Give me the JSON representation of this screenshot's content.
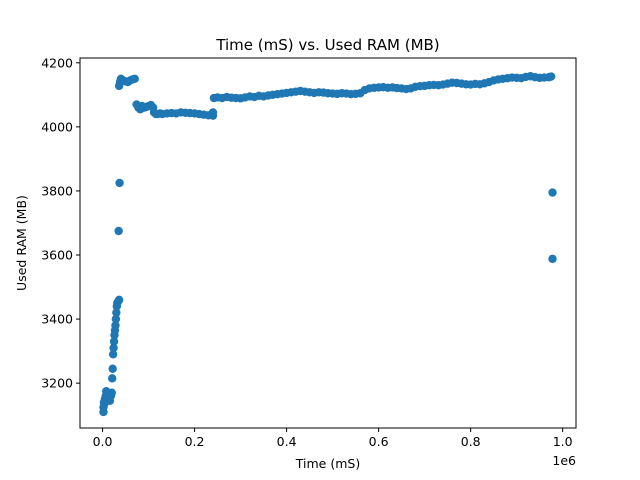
{
  "chart_data": {
    "type": "scatter",
    "title": "Time (mS) vs. Used RAM (MB)",
    "xlabel": "Time (mS)",
    "ylabel": "Used RAM (MB)",
    "x_offset_label": "1e6",
    "xlim": [
      -0.049,
      1.029
    ],
    "ylim": [
      3060,
      4215
    ],
    "x_ticks": [
      0.0,
      0.2,
      0.4,
      0.6,
      0.8,
      1.0
    ],
    "x_tick_labels": [
      "0.0",
      "0.2",
      "0.4",
      "0.6",
      "0.8",
      "1.0"
    ],
    "y_ticks": [
      3200,
      3400,
      3600,
      3800,
      4000,
      4200
    ],
    "y_tick_labels": [
      "3200",
      "3400",
      "3600",
      "3800",
      "4000",
      "4200"
    ],
    "grid": false,
    "marker_color": "#1f77b4",
    "x_unit_multiplier": 1000000,
    "points": [
      [
        0.002,
        3110
      ],
      [
        0.002,
        3125
      ],
      [
        0.003,
        3140
      ],
      [
        0.004,
        3135
      ],
      [
        0.005,
        3150
      ],
      [
        0.007,
        3160
      ],
      [
        0.008,
        3175
      ],
      [
        0.01,
        3165
      ],
      [
        0.012,
        3155
      ],
      [
        0.014,
        3150
      ],
      [
        0.016,
        3145
      ],
      [
        0.018,
        3160
      ],
      [
        0.02,
        3170
      ],
      [
        0.021,
        3215
      ],
      [
        0.022,
        3245
      ],
      [
        0.023,
        3290
      ],
      [
        0.024,
        3310
      ],
      [
        0.025,
        3330
      ],
      [
        0.026,
        3350
      ],
      [
        0.027,
        3365
      ],
      [
        0.028,
        3380
      ],
      [
        0.029,
        3400
      ],
      [
        0.03,
        3420
      ],
      [
        0.031,
        3440
      ],
      [
        0.032,
        3450
      ],
      [
        0.034,
        3455
      ],
      [
        0.036,
        3460
      ],
      [
        0.035,
        3675
      ],
      [
        0.037,
        3825
      ],
      [
        0.036,
        4128
      ],
      [
        0.038,
        4140
      ],
      [
        0.04,
        4150
      ],
      [
        0.045,
        4145
      ],
      [
        0.05,
        4142
      ],
      [
        0.055,
        4140
      ],
      [
        0.06,
        4145
      ],
      [
        0.065,
        4148
      ],
      [
        0.07,
        4150
      ],
      [
        0.074,
        4070
      ],
      [
        0.078,
        4060
      ],
      [
        0.082,
        4055
      ],
      [
        0.086,
        4065
      ],
      [
        0.09,
        4060
      ],
      [
        0.095,
        4062
      ],
      [
        0.1,
        4065
      ],
      [
        0.105,
        4068
      ],
      [
        0.11,
        4060
      ],
      [
        0.112,
        4045
      ],
      [
        0.116,
        4040
      ],
      [
        0.12,
        4040
      ],
      [
        0.125,
        4042
      ],
      [
        0.13,
        4040
      ],
      [
        0.14,
        4042
      ],
      [
        0.15,
        4043
      ],
      [
        0.16,
        4042
      ],
      [
        0.17,
        4045
      ],
      [
        0.18,
        4044
      ],
      [
        0.19,
        4043
      ],
      [
        0.2,
        4042
      ],
      [
        0.21,
        4040
      ],
      [
        0.22,
        4038
      ],
      [
        0.23,
        4036
      ],
      [
        0.24,
        4035
      ],
      [
        0.24,
        4045
      ],
      [
        0.242,
        4090
      ],
      [
        0.25,
        4092
      ],
      [
        0.26,
        4090
      ],
      [
        0.27,
        4093
      ],
      [
        0.28,
        4091
      ],
      [
        0.29,
        4090
      ],
      [
        0.3,
        4089
      ],
      [
        0.31,
        4092
      ],
      [
        0.32,
        4095
      ],
      [
        0.33,
        4093
      ],
      [
        0.34,
        4097
      ],
      [
        0.35,
        4095
      ],
      [
        0.36,
        4098
      ],
      [
        0.37,
        4100
      ],
      [
        0.38,
        4102
      ],
      [
        0.39,
        4104
      ],
      [
        0.4,
        4106
      ],
      [
        0.41,
        4108
      ],
      [
        0.42,
        4110
      ],
      [
        0.43,
        4112
      ],
      [
        0.44,
        4110
      ],
      [
        0.45,
        4108
      ],
      [
        0.46,
        4106
      ],
      [
        0.47,
        4108
      ],
      [
        0.48,
        4107
      ],
      [
        0.49,
        4105
      ],
      [
        0.5,
        4104
      ],
      [
        0.51,
        4103
      ],
      [
        0.52,
        4105
      ],
      [
        0.53,
        4104
      ],
      [
        0.54,
        4102
      ],
      [
        0.55,
        4103
      ],
      [
        0.56,
        4105
      ],
      [
        0.57,
        4115
      ],
      [
        0.58,
        4120
      ],
      [
        0.59,
        4122
      ],
      [
        0.6,
        4123
      ],
      [
        0.61,
        4124
      ],
      [
        0.62,
        4122
      ],
      [
        0.63,
        4123
      ],
      [
        0.64,
        4121
      ],
      [
        0.65,
        4120
      ],
      [
        0.66,
        4118
      ],
      [
        0.67,
        4120
      ],
      [
        0.68,
        4125
      ],
      [
        0.69,
        4127
      ],
      [
        0.7,
        4128
      ],
      [
        0.71,
        4130
      ],
      [
        0.72,
        4131
      ],
      [
        0.73,
        4130
      ],
      [
        0.74,
        4132
      ],
      [
        0.75,
        4135
      ],
      [
        0.76,
        4138
      ],
      [
        0.77,
        4137
      ],
      [
        0.78,
        4135
      ],
      [
        0.79,
        4133
      ],
      [
        0.8,
        4132
      ],
      [
        0.81,
        4134
      ],
      [
        0.82,
        4133
      ],
      [
        0.83,
        4136
      ],
      [
        0.84,
        4140
      ],
      [
        0.85,
        4145
      ],
      [
        0.86,
        4148
      ],
      [
        0.87,
        4150
      ],
      [
        0.88,
        4152
      ],
      [
        0.89,
        4154
      ],
      [
        0.9,
        4153
      ],
      [
        0.91,
        4152
      ],
      [
        0.92,
        4156
      ],
      [
        0.93,
        4158
      ],
      [
        0.94,
        4155
      ],
      [
        0.95,
        4153
      ],
      [
        0.96,
        4154
      ],
      [
        0.97,
        4155
      ],
      [
        0.975,
        4157
      ],
      [
        0.978,
        3795
      ],
      [
        0.978,
        3588
      ]
    ]
  }
}
